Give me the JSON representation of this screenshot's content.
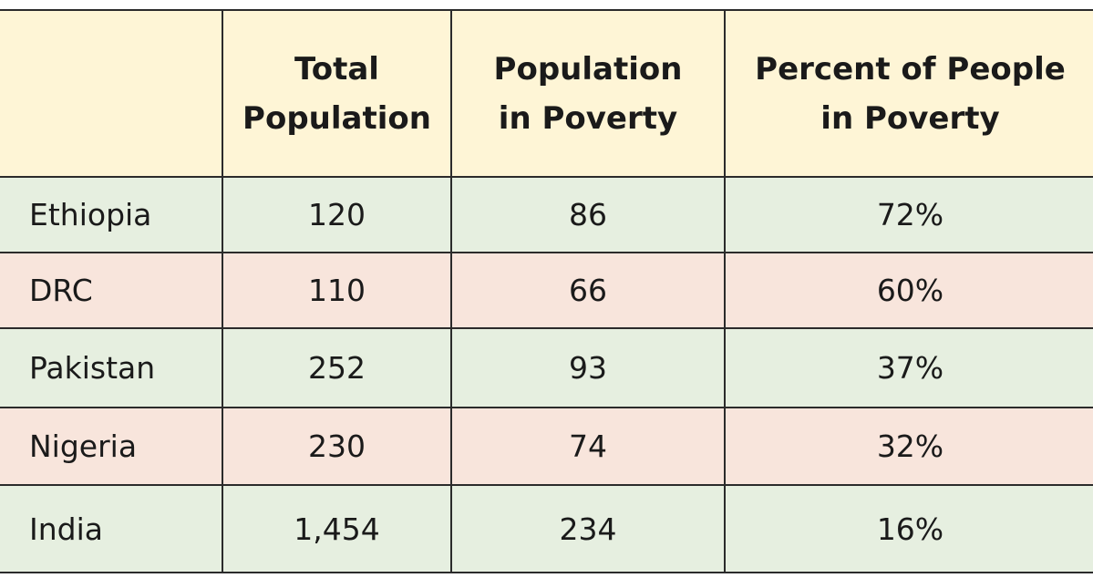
{
  "table": {
    "headers": [
      {
        "lines": []
      },
      {
        "lines": [
          "Total",
          "Population"
        ]
      },
      {
        "lines": [
          "Population",
          "in Poverty"
        ]
      },
      {
        "lines": [
          "Percent of People",
          "in Poverty"
        ]
      }
    ],
    "rows": [
      {
        "country": "Ethiopia",
        "total_population": "120",
        "population_in_poverty": "86",
        "percent_in_poverty": "72%",
        "shade": "green"
      },
      {
        "country": "DRC",
        "total_population": "110",
        "population_in_poverty": "66",
        "percent_in_poverty": "60%",
        "shade": "pink"
      },
      {
        "country": "Pakistan",
        "total_population": "252",
        "population_in_poverty": "93",
        "percent_in_poverty": "37%",
        "shade": "green"
      },
      {
        "country": "Nigeria",
        "total_population": "230",
        "population_in_poverty": "74",
        "percent_in_poverty": "32%",
        "shade": "pink"
      },
      {
        "country": "India",
        "total_population": "1,454",
        "population_in_poverty": "234",
        "percent_in_poverty": "16%",
        "shade": "green"
      }
    ]
  },
  "colors": {
    "header_bg": "#fef5d6",
    "row_green": "#e6efe0",
    "row_pink": "#f8e5dc",
    "border": "#2b2b2b"
  }
}
